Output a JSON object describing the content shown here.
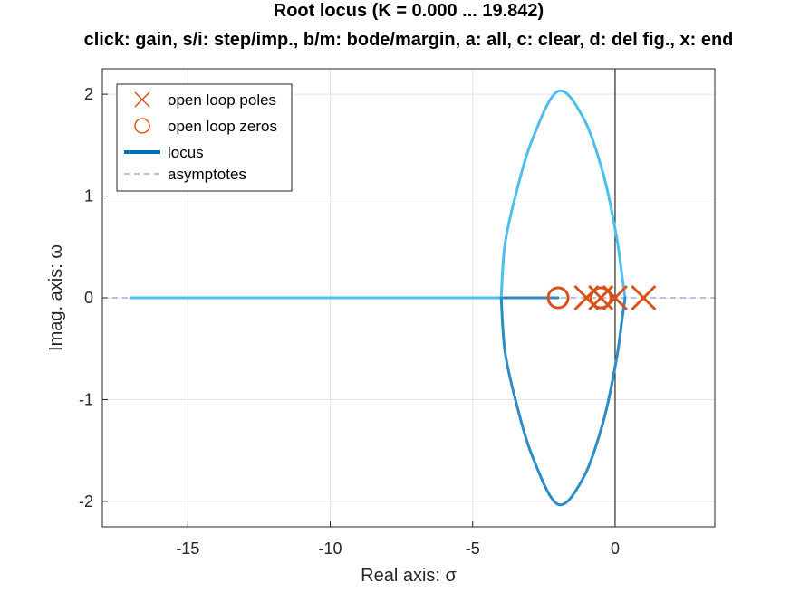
{
  "chart_data": {
    "type": "line",
    "title": "Root locus (K = 0.000 ... 19.842)",
    "subtitle": "click: gain, s/i: step/imp., b/m: bode/margin, a: all, c: clear, d: del fig., x: end",
    "xlabel": "Real axis: σ",
    "ylabel": "Imag. axis: ω",
    "xlim": [
      -18,
      3.5
    ],
    "ylim": [
      -2.25,
      2.25
    ],
    "xticks": [
      -15,
      -10,
      -5,
      0
    ],
    "xtick_labels": [
      "-15",
      "-10",
      "-5",
      "0"
    ],
    "yticks": [
      -2,
      -1,
      0,
      1,
      2
    ],
    "ytick_labels": [
      "-2",
      "-1",
      "0",
      "1",
      "2"
    ],
    "grid": true,
    "legend_position": "top-left",
    "legend": [
      {
        "key": "poles",
        "label": "open loop poles"
      },
      {
        "key": "zeros",
        "label": "open loop zeros"
      },
      {
        "key": "locus",
        "label": "locus"
      },
      {
        "key": "asymptotes",
        "label": "asymptotes"
      }
    ],
    "colors": {
      "markers": "#d95319",
      "locus_light": "#4dbeee",
      "locus_dark": "#2b8cc8",
      "asymptote": "#6f7fd8",
      "grid": "#e6e6e6",
      "axis": "#262626"
    },
    "open_loop_poles": [
      {
        "re": -1.0,
        "im": 0
      },
      {
        "re": -0.5,
        "im": 0
      },
      {
        "re": 0.0,
        "im": 0
      },
      {
        "re": 1.0,
        "im": 0
      }
    ],
    "open_loop_zeros": [
      {
        "re": -2.0,
        "im": 0
      },
      {
        "re": -0.5,
        "im": 0
      }
    ],
    "locus_branches": [
      {
        "name": "real axis branch",
        "points": [
          [
            -17.0,
            0
          ],
          [
            -4.0,
            0
          ]
        ]
      },
      {
        "name": "real axis segment",
        "points": [
          [
            -4.0,
            0
          ],
          [
            -2.0,
            0
          ]
        ]
      },
      {
        "name": "upper loop",
        "points": [
          [
            -4.0,
            0
          ],
          [
            -3.87,
            0.52
          ],
          [
            -3.5,
            1.0
          ],
          [
            -2.9,
            1.56
          ],
          [
            -2.0,
            2.03
          ],
          [
            -1.1,
            1.76
          ],
          [
            -0.4,
            1.2
          ],
          [
            0.05,
            0.6
          ],
          [
            0.25,
            0.2
          ],
          [
            0.35,
            0
          ]
        ]
      },
      {
        "name": "lower loop",
        "points": [
          [
            -4.0,
            0
          ],
          [
            -3.87,
            -0.52
          ],
          [
            -3.5,
            -1.0
          ],
          [
            -2.9,
            -1.56
          ],
          [
            -2.0,
            -2.03
          ],
          [
            -1.1,
            -1.76
          ],
          [
            -0.4,
            -1.2
          ],
          [
            0.05,
            -0.6
          ],
          [
            0.25,
            -0.2
          ],
          [
            0.35,
            0
          ]
        ]
      }
    ],
    "asymptotes": [
      {
        "points": [
          [
            -18.0,
            0
          ],
          [
            3.5,
            0
          ]
        ]
      }
    ],
    "imaginary_axis": {
      "re": 0
    }
  }
}
